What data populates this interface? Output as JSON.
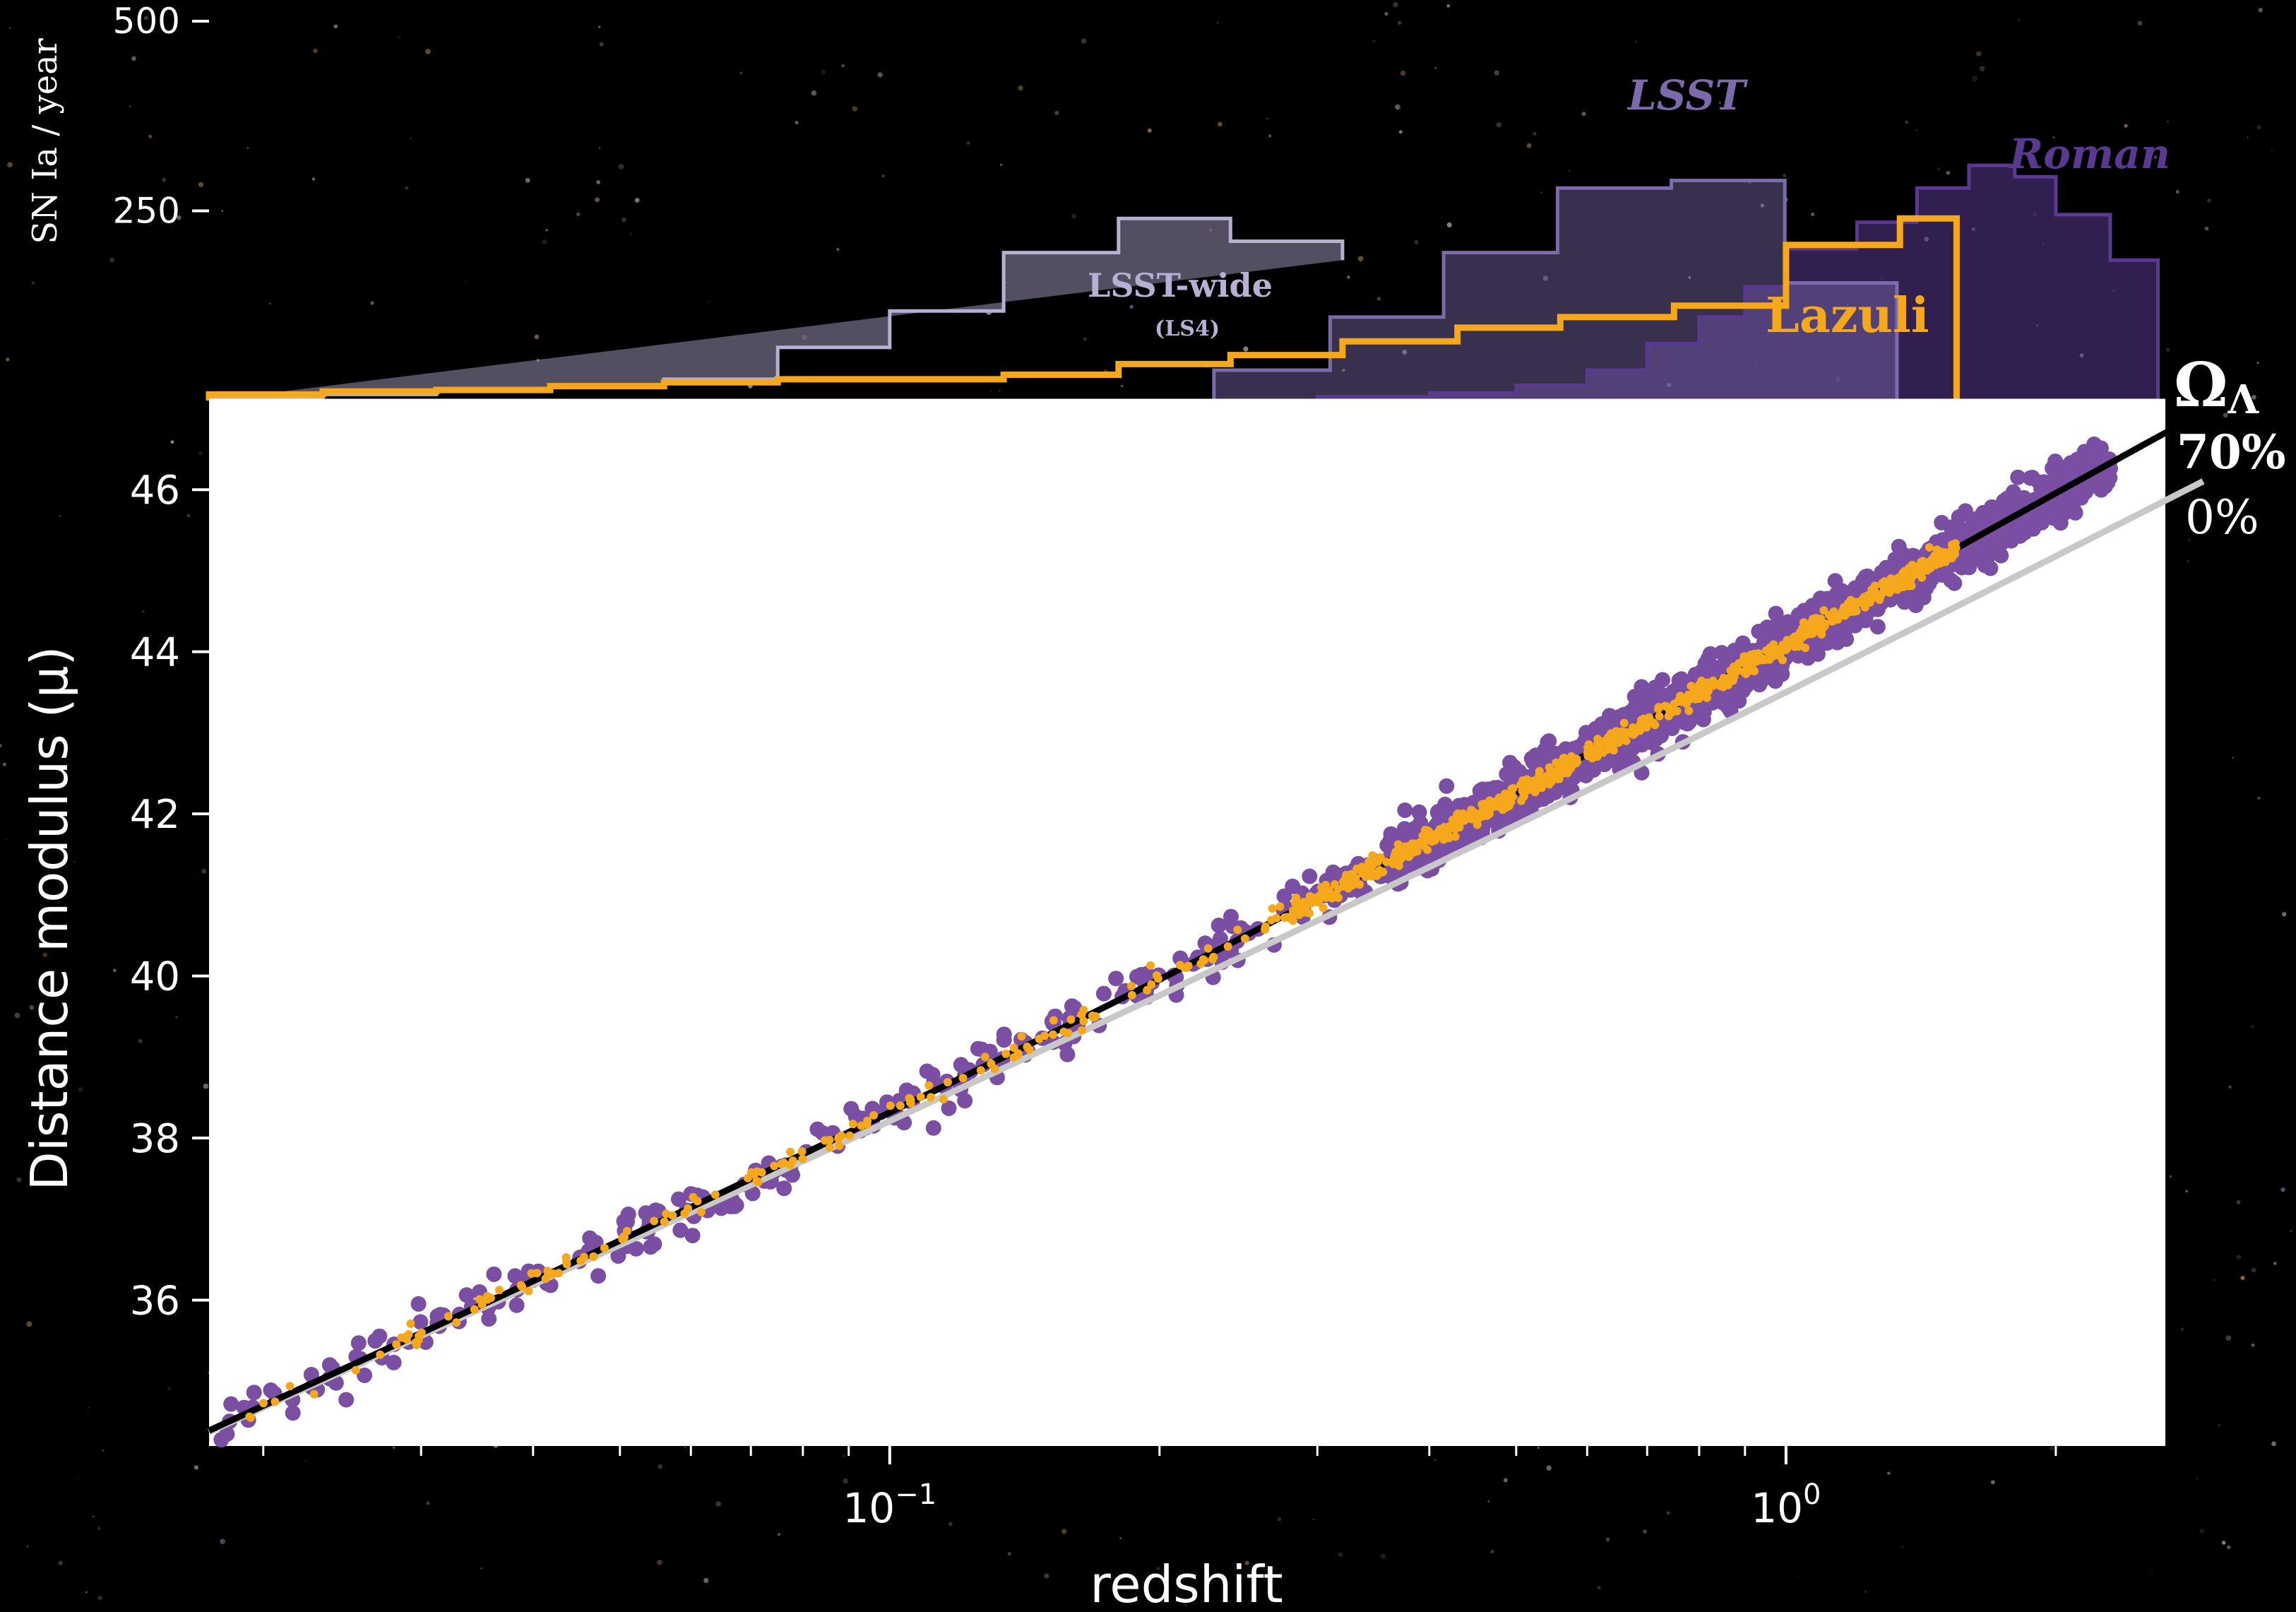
{
  "colors": {
    "background": "#000000",
    "lsst_wide": "#b7b0d4",
    "lsst": "#7d6aab",
    "roman": "#5a3990",
    "lazuli": "#f6a81d",
    "sn_points": "#7a4ea3",
    "lazuli_points": "#f6a81d",
    "omega70_line": "#000000",
    "omega0_line": "#c8c8c8"
  },
  "chart_data": [
    {
      "type": "area",
      "ylabel": "SN Ia  /  year",
      "yticks": [
        250,
        500
      ],
      "ylim": [
        0,
        500
      ],
      "series": [
        {
          "name": "LSST-wide",
          "sublabel": "(LS4)",
          "edges": [
            0.0174,
            0.0233,
            0.0312,
            0.0418,
            0.056,
            0.075,
            0.1,
            0.134,
            0.18,
            0.24,
            0.32
          ],
          "values": [
            4,
            8,
            12,
            18,
            28,
            70,
            118,
            195,
            240,
            210,
            185
          ]
        },
        {
          "name": "LSST",
          "edges": [
            0.23,
            0.31,
            0.415,
            0.556,
            0.745,
            0.997,
            1.33,
            1.78,
            2.4
          ],
          "values": [
            40,
            110,
            195,
            280,
            290,
            155,
            0,
            0
          ]
        },
        {
          "name": "Roman",
          "edges": [
            0.2,
            0.3,
            0.4,
            0.5,
            0.6,
            0.7,
            0.8,
            0.9,
            1.0,
            1.2,
            1.4,
            1.6,
            1.8,
            2.0,
            2.3,
            2.6
          ],
          "values": [
            0,
            5,
            10,
            20,
            40,
            75,
            110,
            150,
            200,
            235,
            280,
            310,
            295,
            245,
            185
          ]
        },
        {
          "name": "Lazuli",
          "edges": [
            0.0174,
            0.0233,
            0.0312,
            0.0418,
            0.056,
            0.075,
            0.1,
            0.134,
            0.18,
            0.24,
            0.32,
            0.43,
            0.56,
            0.75,
            1.0,
            1.34,
            1.55
          ],
          "values": [
            8,
            12,
            14,
            19,
            24,
            28,
            28,
            34,
            48,
            60,
            78,
            96,
            110,
            125,
            205,
            240
          ]
        }
      ]
    },
    {
      "type": "scatter",
      "xlabel": "redshift",
      "ylabel": "Distance modulus (μ)",
      "xscale": "log",
      "xlim": [
        0.0174,
        2.65
      ],
      "ylim": [
        34.2,
        47.1
      ],
      "yticks": [
        "36",
        "38",
        "40",
        "42",
        "44",
        "46"
      ],
      "xticks": [
        {
          "base": "10",
          "exp": "−1",
          "value": 0.1
        },
        {
          "base": "10",
          "exp": "0",
          "value": 1.0
        }
      ],
      "omega_label": "Ω",
      "omega_subscript": "Λ",
      "series": [
        {
          "name": "70%",
          "kind": "line",
          "omega_lambda": 0.7
        },
        {
          "name": "0%",
          "kind": "line",
          "omega_lambda": 0.0
        }
      ],
      "points": {
        "purple_range": [
          0.0174,
          2.3
        ],
        "orange_range": [
          0.0174,
          1.55
        ]
      }
    }
  ]
}
